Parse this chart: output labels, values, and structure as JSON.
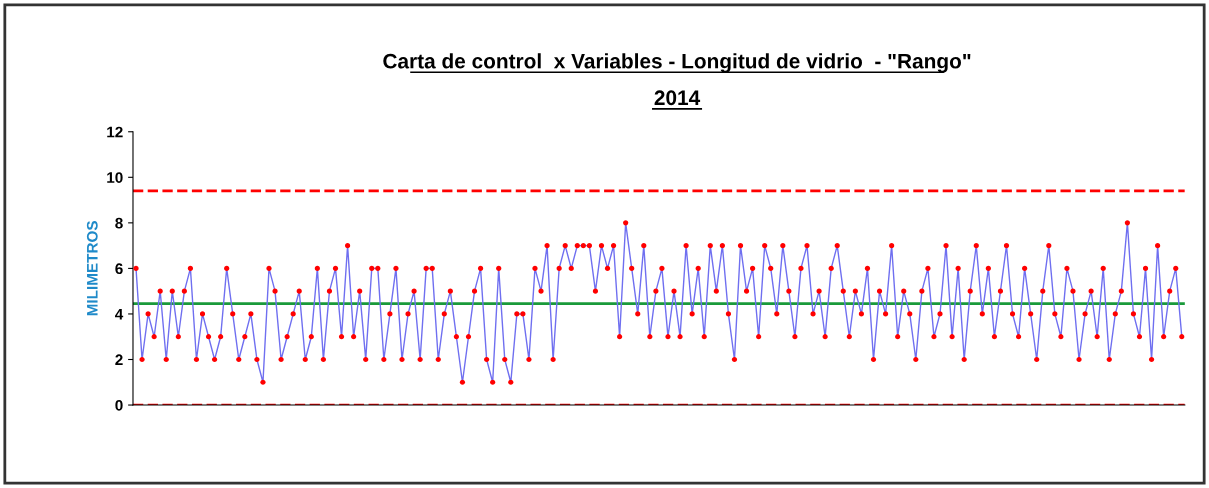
{
  "chart_data": {
    "type": "line",
    "title": "Carta de control  x Variables - Longitud de vidrio  - \"Rango\"",
    "subtitle": "2014",
    "ylabel": "MILIMETROS",
    "categories": [
      null,
      null,
      null,
      null,
      null,
      null,
      null,
      null,
      null,
      null,
      null,
      null,
      null,
      null,
      null,
      null,
      null,
      null,
      null,
      null,
      null,
      null,
      null,
      null,
      null,
      null,
      null,
      null,
      null,
      null,
      null,
      null,
      null,
      null,
      null,
      null,
      null,
      null,
      null,
      null,
      null,
      null,
      null,
      null,
      null,
      null,
      null,
      null,
      null,
      null,
      null,
      null,
      null,
      null,
      null,
      null,
      null,
      null,
      null,
      null,
      null,
      null,
      null,
      null,
      null,
      null,
      null,
      null,
      null,
      null,
      null,
      null,
      null,
      null,
      null,
      null,
      null,
      null,
      null,
      null,
      null,
      null,
      null,
      null,
      null,
      null,
      null,
      null,
      null,
      null,
      null,
      null,
      null,
      null,
      null,
      null,
      null,
      null,
      null,
      null,
      null,
      null,
      null,
      null,
      null,
      null,
      null,
      null,
      null,
      null,
      null,
      null,
      null,
      null,
      null,
      null,
      null,
      null,
      null,
      null,
      null,
      null,
      null,
      null,
      null,
      null,
      null,
      null,
      null,
      null,
      null,
      null,
      null,
      null,
      null,
      null,
      null,
      null,
      null,
      null,
      null,
      null,
      null,
      null,
      null,
      null,
      null,
      null,
      null,
      null,
      null,
      null,
      null,
      null,
      null,
      null,
      null,
      null,
      null,
      null,
      null,
      null,
      null,
      null,
      null,
      null,
      null,
      null,
      null,
      null,
      null,
      null,
      null,
      null
    ],
    "series": [
      {
        "color": "#6f6ff0",
        "values": [
          6,
          2,
          4,
          3,
          5,
          2,
          5,
          3,
          5,
          6,
          2,
          4,
          3,
          2,
          3,
          6,
          4,
          2,
          3,
          4,
          2,
          1,
          6,
          5,
          2,
          3,
          4,
          5,
          2,
          3,
          6,
          2,
          5,
          6,
          3,
          7,
          3,
          5,
          2,
          6,
          6,
          2,
          4,
          6,
          2,
          4,
          5,
          2,
          6,
          6,
          2,
          4,
          5,
          3,
          1,
          3,
          5,
          6,
          2,
          1,
          6,
          2,
          1,
          4,
          4,
          2,
          6,
          5,
          7,
          2,
          6,
          7,
          6,
          7,
          7,
          7,
          5,
          7,
          6,
          7,
          3,
          8,
          6,
          4,
          7,
          3,
          5,
          6,
          3,
          5,
          3,
          7,
          4,
          6,
          3,
          7,
          5,
          7,
          4,
          2,
          7,
          5,
          6,
          3,
          7,
          6,
          4,
          7,
          5,
          3,
          6,
          7,
          4,
          5,
          3,
          6,
          7,
          5,
          3,
          5,
          4,
          6,
          2,
          5,
          4,
          7,
          3,
          5,
          4,
          2,
          5,
          6,
          3,
          4,
          7,
          3,
          6,
          2,
          5,
          7,
          4,
          6,
          3,
          5,
          7,
          4,
          3,
          6,
          4,
          2,
          5,
          7,
          4,
          3,
          6,
          5,
          2,
          4,
          5,
          3,
          6,
          2,
          4,
          5,
          8,
          4,
          3,
          6,
          2,
          7,
          3,
          5,
          6,
          3
        ],
        "colors": [
          "#ff0000",
          "#ff0000",
          "#ff0000",
          "#ff0000",
          "#ff0000",
          "#ff0000",
          "#ff0000",
          "#ff0000",
          "#ff0000",
          "#ff0000",
          "#ff0000",
          "#ff0000",
          "#ff0000",
          "#ff0000",
          "#ff0000",
          "#ff0000",
          "#ff0000",
          "#ff0000",
          "#ff0000",
          "#ff0000",
          "#ff0000",
          "#ff0000",
          "#ff0000",
          "#ff0000",
          "#ff0000",
          "#ff0000",
          "#ff0000",
          "#ff0000",
          "#ff0000",
          "#ff0000",
          "#ff0000",
          "#ff0000",
          "#ff0000",
          "#ff0000",
          "#ff0000",
          "#ff0000",
          "#ff0000",
          "#ff0000",
          "#ff0000",
          "#ff0000",
          "#ff0000",
          "#ff0000",
          "#ff0000",
          "#ff0000",
          "#ff0000",
          "#ff0000",
          "#ff0000",
          "#ff0000",
          "#ff0000",
          "#ff0000",
          "#ff0000",
          "#ff0000",
          "#ff0000",
          "#ff0000",
          "#ff0000",
          "#ff0000",
          "#ff0000",
          "#ff0000",
          "#ff0000",
          "#ff0000",
          "#ff0000",
          "#ff0000",
          "#ff0000",
          "#ff0000",
          "#ff0000",
          "#ff0000",
          "#ff0000",
          "#ff0000",
          "#ff0000",
          "#ff0000",
          "#ff0000",
          "#ff0000",
          "#ff0000",
          "#ff0000",
          "#ff0000",
          "#ff0000",
          "#ff0000",
          "#ff0000",
          "#ff0000",
          "#ff0000",
          "#ff0000",
          "#ff0000",
          "#ff0000",
          "#ff0000",
          "#ff0000",
          "#ff0000",
          "#ff0000",
          "#ff0000",
          "#ff0000",
          "#ff0000",
          "#ff0000",
          "#ff0000",
          "#ff0000",
          "#ff0000",
          "#ff0000",
          "#ff0000",
          "#ff0000",
          "#ff0000",
          "#ff0000",
          "#ff0000",
          "#ff0000",
          "#ff0000",
          "#ff0000",
          "#ff0000",
          "#ff0000",
          "#ff0000",
          "#ff0000",
          "#ff0000",
          "#ff0000",
          "#ff0000",
          "#ff0000",
          "#ff0000",
          "#ff0000",
          "#ff0000",
          "#ff0000",
          "#ff0000",
          "#ff0000",
          "#ff0000",
          "#ff0000",
          "#ff0000",
          "#ff0000",
          "#ff0000",
          "#ff0000",
          "#ff0000",
          "#ff0000",
          "#ff0000",
          "#ff0000",
          "#ff0000",
          "#ff0000",
          "#ff0000",
          "#ff0000",
          "#ff0000",
          "#ff0000",
          "#ff0000",
          "#ff0000",
          "#ff0000",
          "#ff0000",
          "#ff0000",
          "#ff0000",
          "#ff0000",
          "#ff0000",
          "#ff0000",
          "#ff0000",
          "#ff0000",
          "#ff0000",
          "#ff0000",
          "#ff0000",
          "#ff0000",
          "#ff0000",
          "#ff0000",
          "#ff0000",
          "#ff0000",
          "#ff0000",
          "#ff0000",
          "#ff0000",
          "#ff0000",
          "#ff0000",
          "#ff0000",
          "#ff0000",
          "#ff0000",
          "#ff0000",
          "#ff0000",
          "#ff0000",
          "#ff0000",
          "#ff0000",
          "#ff0000",
          "#ff0000",
          "#ff0000",
          "#ff0000",
          "#ff0000",
          "#ff0000",
          "#ff0000",
          "#ff0000",
          "#ff0000"
        ]
      }
    ],
    "ylim": [
      0,
      12
    ],
    "yticks": [
      0,
      2,
      4,
      6,
      8,
      10,
      12
    ],
    "grid": false,
    "marker": "circle",
    "line_style": "solid",
    "tick_labels": "y",
    "ref_lines": [
      {
        "axis": "y",
        "value": 9.4,
        "color": "#ff0000",
        "line_style": "dashed"
      },
      {
        "axis": "y",
        "value": 0,
        "color": "#ff0000",
        "line_style": "dashed"
      },
      {
        "axis": "y",
        "value": 4.45,
        "color": "#1a9a3a",
        "line_style": "solid"
      }
    ]
  }
}
